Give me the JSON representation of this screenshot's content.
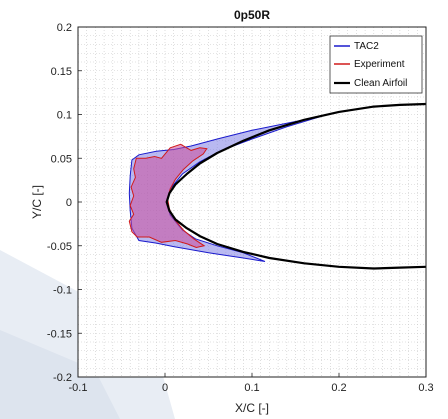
{
  "chart_data": {
    "type": "line",
    "title": "0p50R",
    "xlabel": "X/C [-]",
    "ylabel": "Y/C [-]",
    "xlim": [
      -0.1,
      0.3
    ],
    "ylim": [
      -0.2,
      0.2
    ],
    "xticks": [
      "-0.1",
      "0",
      "0.1",
      "0.2",
      "0.3"
    ],
    "yticks": [
      "-0.2",
      "-0.15",
      "-0.1",
      "-0.05",
      "0",
      "0.05",
      "0.1",
      "0.15",
      "0.2"
    ],
    "grid": "minor dotted",
    "legend_position": "top-right",
    "series": [
      {
        "name": "TAC2",
        "color": "#1a1acc",
        "fill": "#8080e6",
        "points": [
          [
            -0.038,
            0.048
          ],
          [
            -0.04,
            0.03
          ],
          [
            -0.041,
            0.01
          ],
          [
            -0.04,
            -0.01
          ],
          [
            -0.038,
            -0.03
          ],
          [
            -0.03,
            -0.044
          ],
          [
            -0.01,
            -0.047
          ],
          [
            0.01,
            -0.051
          ],
          [
            0.05,
            -0.058
          ],
          [
            0.09,
            -0.064
          ],
          [
            0.115,
            -0.068
          ],
          [
            0.09,
            -0.058
          ],
          [
            0.06,
            -0.05
          ],
          [
            0.035,
            -0.042
          ],
          [
            0.02,
            -0.032
          ],
          [
            0.006,
            -0.015
          ],
          [
            0.002,
            0
          ],
          [
            0.006,
            0.015
          ],
          [
            0.02,
            0.032
          ],
          [
            0.04,
            0.046
          ],
          [
            0.065,
            0.059
          ],
          [
            0.1,
            0.072
          ],
          [
            0.14,
            0.086
          ],
          [
            0.18,
            0.098
          ],
          [
            0.14,
            0.09
          ],
          [
            0.1,
            0.082
          ],
          [
            0.06,
            0.072
          ],
          [
            0.03,
            0.064
          ],
          [
            0.01,
            0.06
          ],
          [
            -0.01,
            0.058
          ],
          [
            -0.03,
            0.054
          ],
          [
            -0.038,
            0.048
          ]
        ]
      },
      {
        "name": "Experiment",
        "color": "#d11a1a",
        "fill": "#cc4d99",
        "points": [
          [
            -0.033,
            0.05
          ],
          [
            -0.036,
            0.038
          ],
          [
            -0.034,
            0.028
          ],
          [
            -0.039,
            0.017
          ],
          [
            -0.036,
            0.007
          ],
          [
            -0.04,
            -0.004
          ],
          [
            -0.036,
            -0.014
          ],
          [
            -0.041,
            -0.022
          ],
          [
            -0.038,
            -0.034
          ],
          [
            -0.032,
            -0.04
          ],
          [
            -0.018,
            -0.04
          ],
          [
            -0.004,
            -0.046
          ],
          [
            0.012,
            -0.044
          ],
          [
            0.026,
            -0.048
          ],
          [
            0.036,
            -0.052
          ],
          [
            0.045,
            -0.05
          ],
          [
            0.033,
            -0.042
          ],
          [
            0.021,
            -0.032
          ],
          [
            0.011,
            -0.02
          ],
          [
            0.005,
            -0.008
          ],
          [
            0.003,
            0.004
          ],
          [
            0.006,
            0.015
          ],
          [
            0.012,
            0.026
          ],
          [
            0.021,
            0.037
          ],
          [
            0.032,
            0.047
          ],
          [
            0.044,
            0.055
          ],
          [
            0.048,
            0.061
          ],
          [
            0.04,
            0.062
          ],
          [
            0.03,
            0.059
          ],
          [
            0.018,
            0.066
          ],
          [
            0.006,
            0.062
          ],
          [
            -0.004,
            0.05
          ],
          [
            -0.012,
            0.052
          ],
          [
            -0.022,
            0.05
          ],
          [
            -0.033,
            0.05
          ]
        ]
      },
      {
        "name": "Clean Airfoil",
        "color": "#000000",
        "points": [
          [
            0.3,
            0.112
          ],
          [
            0.27,
            0.111
          ],
          [
            0.24,
            0.109
          ],
          [
            0.2,
            0.103
          ],
          [
            0.16,
            0.094
          ],
          [
            0.12,
            0.082
          ],
          [
            0.09,
            0.07
          ],
          [
            0.06,
            0.056
          ],
          [
            0.04,
            0.044
          ],
          [
            0.025,
            0.032
          ],
          [
            0.012,
            0.02
          ],
          [
            0.005,
            0.01
          ],
          [
            0.002,
            0
          ],
          [
            0.005,
            -0.01
          ],
          [
            0.012,
            -0.02
          ],
          [
            0.025,
            -0.03
          ],
          [
            0.04,
            -0.039
          ],
          [
            0.06,
            -0.048
          ],
          [
            0.09,
            -0.057
          ],
          [
            0.12,
            -0.064
          ],
          [
            0.16,
            -0.07
          ],
          [
            0.2,
            -0.074
          ],
          [
            0.24,
            -0.076
          ],
          [
            0.27,
            -0.075
          ],
          [
            0.3,
            -0.074
          ]
        ]
      }
    ]
  }
}
